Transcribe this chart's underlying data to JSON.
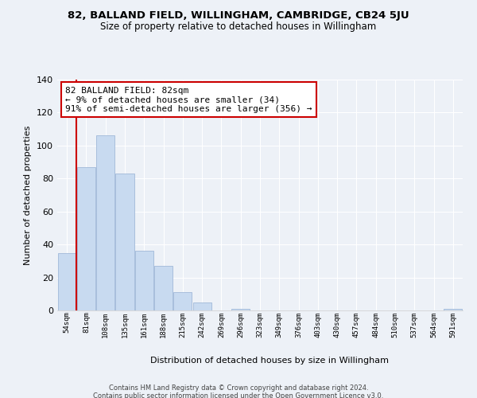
{
  "title": "82, BALLAND FIELD, WILLINGHAM, CAMBRIDGE, CB24 5JU",
  "subtitle": "Size of property relative to detached houses in Willingham",
  "xlabel": "Distribution of detached houses by size in Willingham",
  "ylabel": "Number of detached properties",
  "bar_labels": [
    "54sqm",
    "81sqm",
    "108sqm",
    "135sqm",
    "161sqm",
    "188sqm",
    "215sqm",
    "242sqm",
    "269sqm",
    "296sqm",
    "323sqm",
    "349sqm",
    "376sqm",
    "403sqm",
    "430sqm",
    "457sqm",
    "484sqm",
    "510sqm",
    "537sqm",
    "564sqm",
    "591sqm"
  ],
  "bar_values": [
    35,
    87,
    106,
    83,
    36,
    27,
    11,
    5,
    0,
    1,
    0,
    0,
    0,
    0,
    0,
    0,
    0,
    0,
    0,
    0,
    1
  ],
  "bar_color": "#c8daf0",
  "bar_edge_color": "#a0b8d8",
  "vline_x_index": 1,
  "vline_color": "#cc0000",
  "ylim": [
    0,
    140
  ],
  "yticks": [
    0,
    20,
    40,
    60,
    80,
    100,
    120,
    140
  ],
  "annotation_text": "82 BALLAND FIELD: 82sqm\n← 9% of detached houses are smaller (34)\n91% of semi-detached houses are larger (356) →",
  "annotation_box_color": "#ffffff",
  "annotation_box_edge": "#cc0000",
  "footnote_line1": "Contains HM Land Registry data © Crown copyright and database right 2024.",
  "footnote_line2": "Contains public sector information licensed under the Open Government Licence v3.0.",
  "background_color": "#edf1f7",
  "grid_color": "#ffffff",
  "title_fontsize": 9.5,
  "subtitle_fontsize": 8.5
}
